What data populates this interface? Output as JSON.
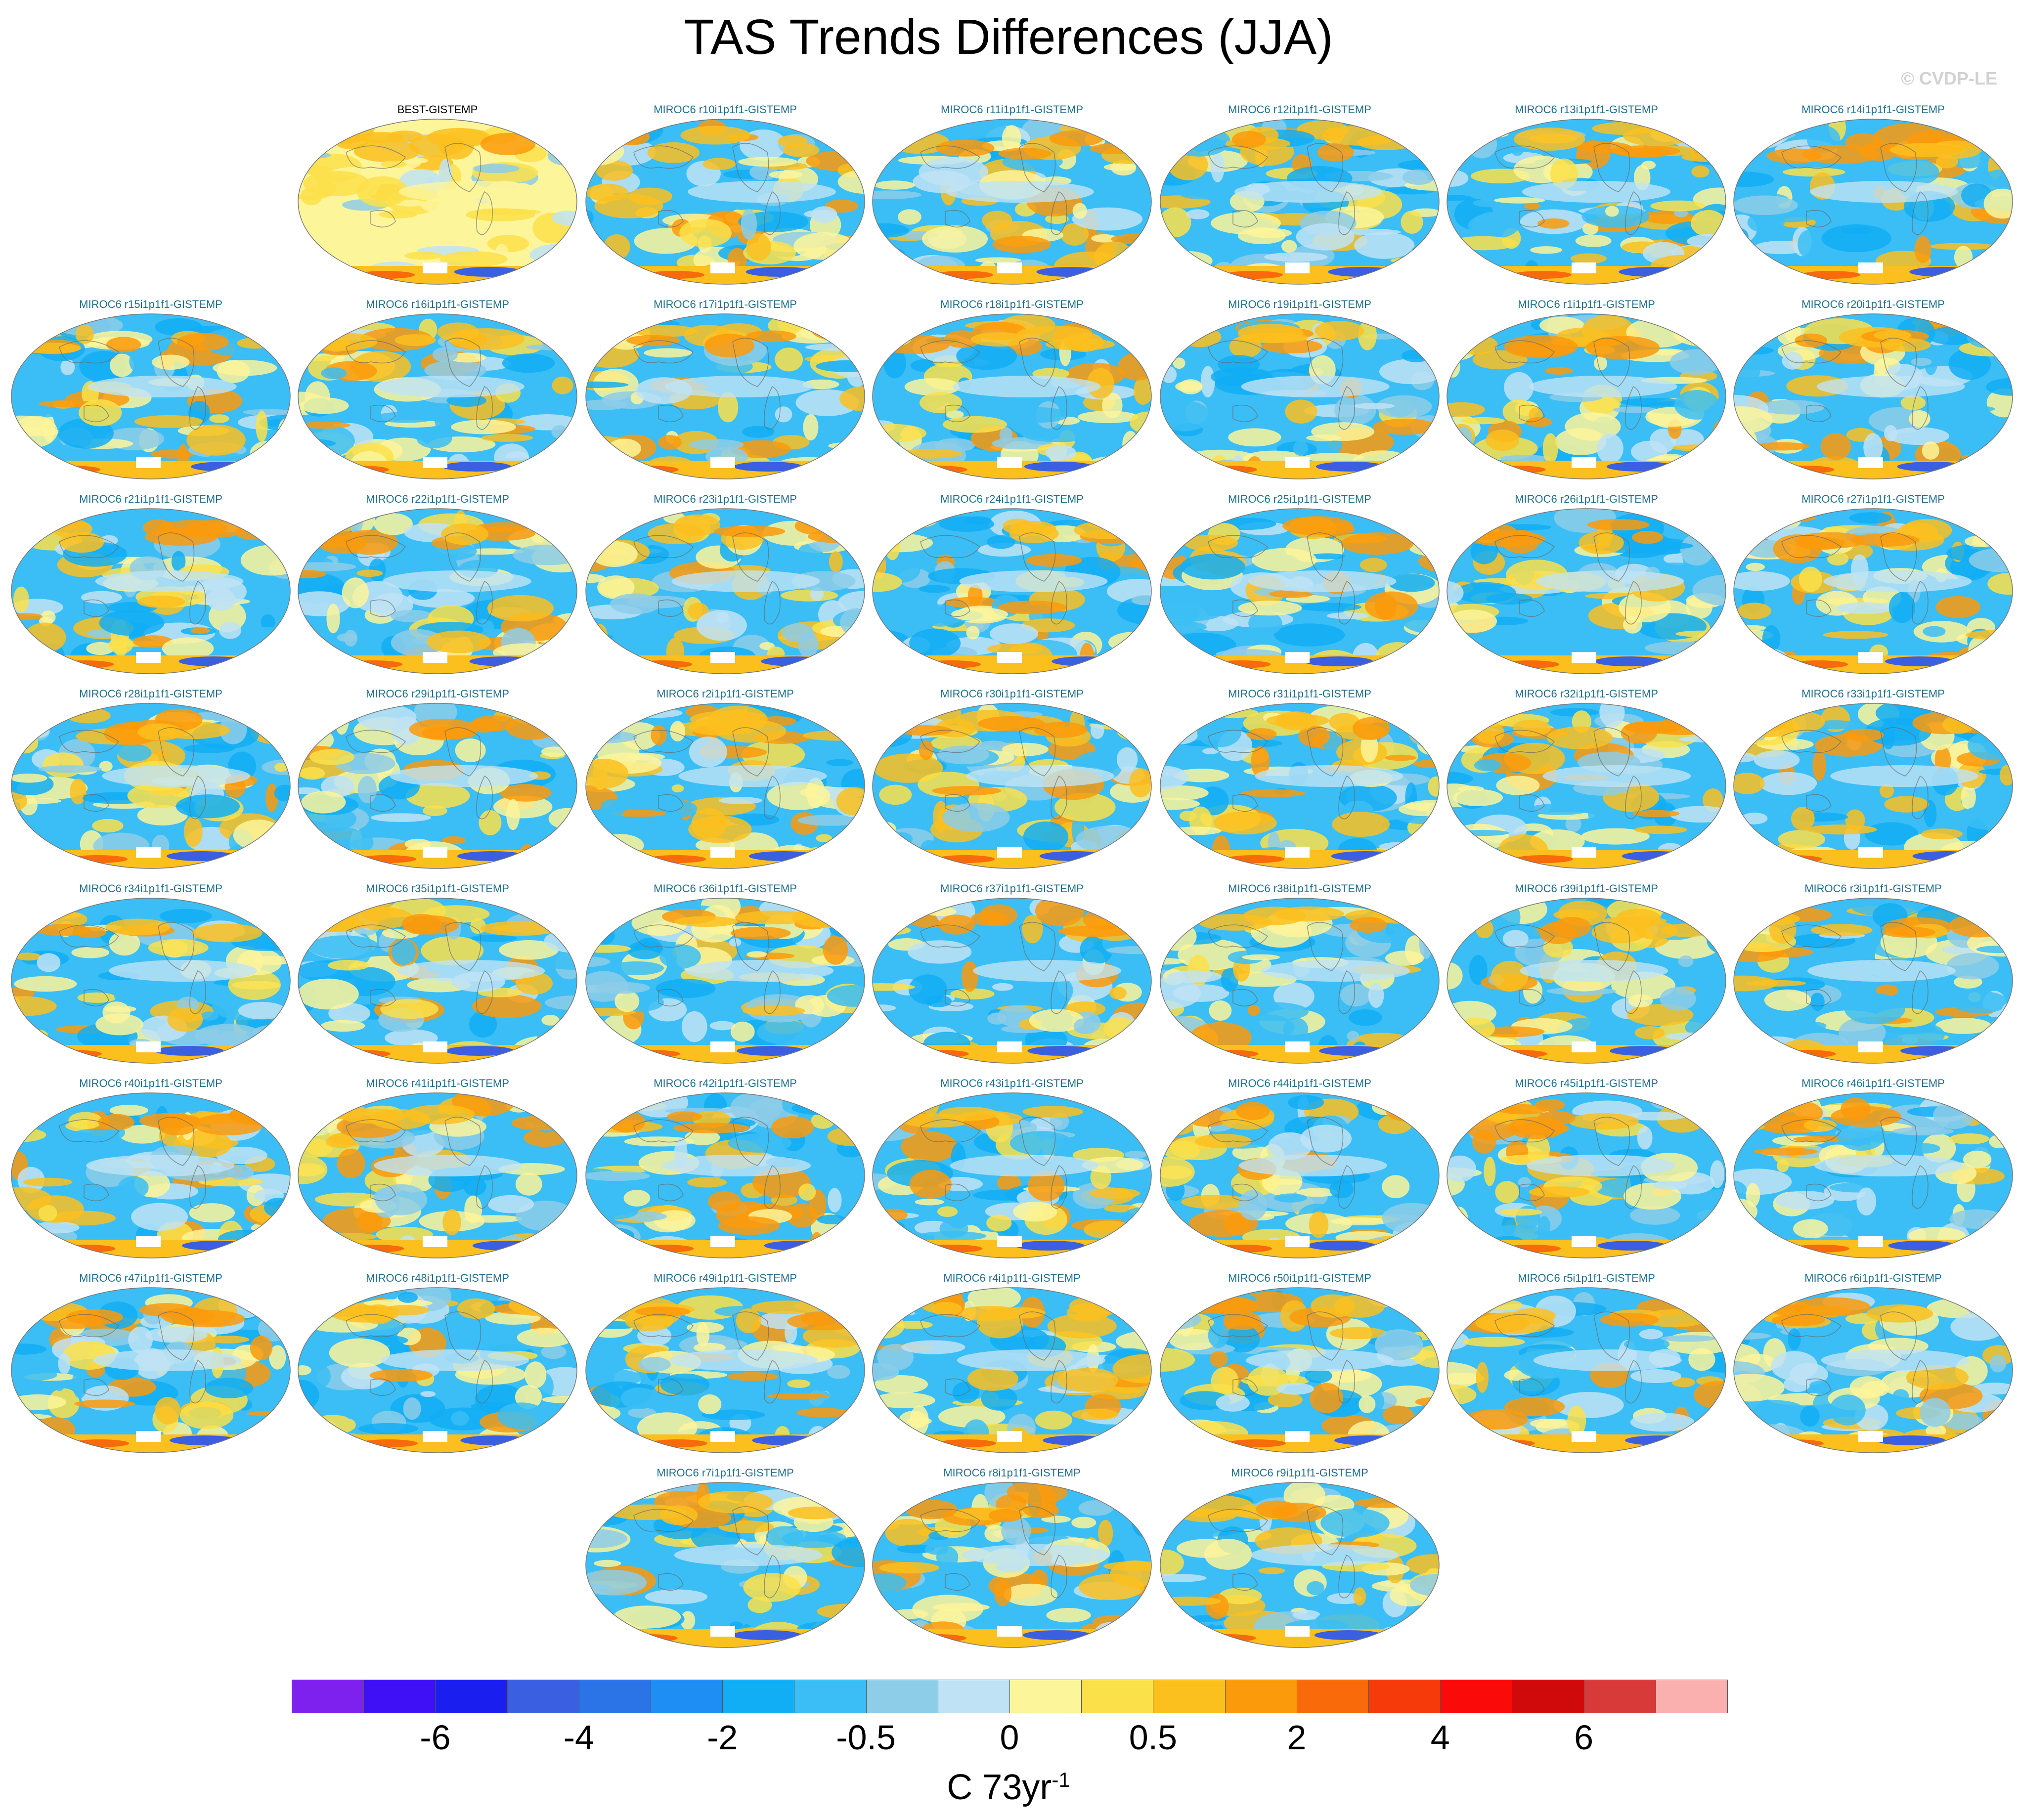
{
  "title": "TAS Trends Differences (JJA)",
  "watermark": "© CVDP-LE",
  "colorbar": {
    "units_base": "C 73yr",
    "units_exponent": "-1",
    "colors": [
      "#7e20ee",
      "#3f10f5",
      "#1a1ff0",
      "#3a5fe0",
      "#2b74e8",
      "#1e8ef5",
      "#12aef5",
      "#3bbef5",
      "#8dcde8",
      "#bfe3f5",
      "#fdf59a",
      "#fbe04a",
      "#fbbf1e",
      "#fb9a0a",
      "#f86a0a",
      "#f63a0a",
      "#fb0a0a",
      "#d00a0a",
      "#d83a3a",
      "#fbb0b0"
    ],
    "labels": [
      "-6",
      "-4",
      "-2",
      "-0.5",
      "0",
      "0.5",
      "2",
      "4",
      "6"
    ]
  },
  "maps": [
    {
      "label": "BEST-GISTEMP",
      "observational": true
    },
    {
      "label": "MIROC6 r10i1p1f1-GISTEMP"
    },
    {
      "label": "MIROC6 r11i1p1f1-GISTEMP"
    },
    {
      "label": "MIROC6 r12i1p1f1-GISTEMP"
    },
    {
      "label": "MIROC6 r13i1p1f1-GISTEMP"
    },
    {
      "label": "MIROC6 r14i1p1f1-GISTEMP"
    },
    {
      "label": "MIROC6 r15i1p1f1-GISTEMP"
    },
    {
      "label": "MIROC6 r16i1p1f1-GISTEMP"
    },
    {
      "label": "MIROC6 r17i1p1f1-GISTEMP"
    },
    {
      "label": "MIROC6 r18i1p1f1-GISTEMP"
    },
    {
      "label": "MIROC6 r19i1p1f1-GISTEMP"
    },
    {
      "label": "MIROC6 r1i1p1f1-GISTEMP"
    },
    {
      "label": "MIROC6 r20i1p1f1-GISTEMP"
    },
    {
      "label": "MIROC6 r21i1p1f1-GISTEMP"
    },
    {
      "label": "MIROC6 r22i1p1f1-GISTEMP"
    },
    {
      "label": "MIROC6 r23i1p1f1-GISTEMP"
    },
    {
      "label": "MIROC6 r24i1p1f1-GISTEMP"
    },
    {
      "label": "MIROC6 r25i1p1f1-GISTEMP"
    },
    {
      "label": "MIROC6 r26i1p1f1-GISTEMP"
    },
    {
      "label": "MIROC6 r27i1p1f1-GISTEMP"
    },
    {
      "label": "MIROC6 r28i1p1f1-GISTEMP"
    },
    {
      "label": "MIROC6 r29i1p1f1-GISTEMP"
    },
    {
      "label": "MIROC6 r2i1p1f1-GISTEMP"
    },
    {
      "label": "MIROC6 r30i1p1f1-GISTEMP"
    },
    {
      "label": "MIROC6 r31i1p1f1-GISTEMP"
    },
    {
      "label": "MIROC6 r32i1p1f1-GISTEMP"
    },
    {
      "label": "MIROC6 r33i1p1f1-GISTEMP"
    },
    {
      "label": "MIROC6 r34i1p1f1-GISTEMP"
    },
    {
      "label": "MIROC6 r35i1p1f1-GISTEMP"
    },
    {
      "label": "MIROC6 r36i1p1f1-GISTEMP"
    },
    {
      "label": "MIROC6 r37i1p1f1-GISTEMP"
    },
    {
      "label": "MIROC6 r38i1p1f1-GISTEMP"
    },
    {
      "label": "MIROC6 r39i1p1f1-GISTEMP"
    },
    {
      "label": "MIROC6 r3i1p1f1-GISTEMP"
    },
    {
      "label": "MIROC6 r40i1p1f1-GISTEMP"
    },
    {
      "label": "MIROC6 r41i1p1f1-GISTEMP"
    },
    {
      "label": "MIROC6 r42i1p1f1-GISTEMP"
    },
    {
      "label": "MIROC6 r43i1p1f1-GISTEMP"
    },
    {
      "label": "MIROC6 r44i1p1f1-GISTEMP"
    },
    {
      "label": "MIROC6 r45i1p1f1-GISTEMP"
    },
    {
      "label": "MIROC6 r46i1p1f1-GISTEMP"
    },
    {
      "label": "MIROC6 r47i1p1f1-GISTEMP"
    },
    {
      "label": "MIROC6 r48i1p1f1-GISTEMP"
    },
    {
      "label": "MIROC6 r49i1p1f1-GISTEMP"
    },
    {
      "label": "MIROC6 r4i1p1f1-GISTEMP"
    },
    {
      "label": "MIROC6 r50i1p1f1-GISTEMP"
    },
    {
      "label": "MIROC6 r5i1p1f1-GISTEMP"
    },
    {
      "label": "MIROC6 r6i1p1f1-GISTEMP"
    },
    {
      "label": "MIROC6 r7i1p1f1-GISTEMP"
    },
    {
      "label": "MIROC6 r8i1p1f1-GISTEMP"
    },
    {
      "label": "MIROC6 r9i1p1f1-GISTEMP"
    }
  ]
}
